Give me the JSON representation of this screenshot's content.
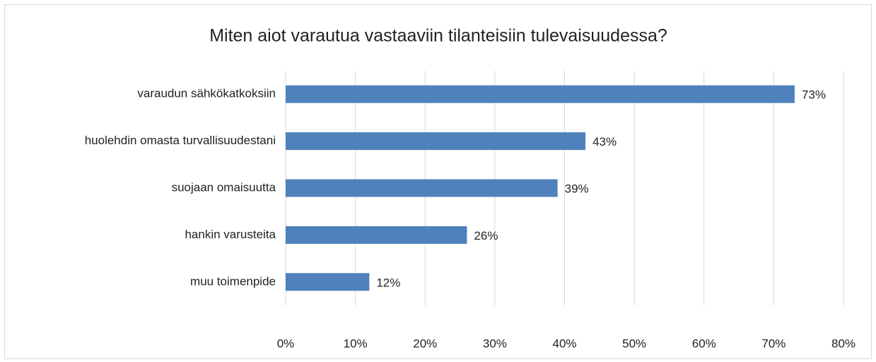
{
  "chart_data": {
    "type": "bar",
    "orientation": "horizontal",
    "title": "Miten aiot varautua vastaaviin tilanteisiin tulevaisuudessa?",
    "categories": [
      "varaudun sähkökatkoksiin",
      "huolehdin omasta turvallisuudestani",
      "suojaan omaisuutta",
      "hankin varusteita",
      "muu toimenpide"
    ],
    "values": [
      73,
      43,
      39,
      26,
      12
    ],
    "value_labels": [
      "73%",
      "43%",
      "39%",
      "26%",
      "12%"
    ],
    "color": "#4f81bd",
    "xlim": [
      0,
      80
    ],
    "xticks": [
      {
        "value": 0,
        "label": "0%"
      },
      {
        "value": 10,
        "label": "10%"
      },
      {
        "value": 20,
        "label": "20%"
      },
      {
        "value": 30,
        "label": "30%"
      },
      {
        "value": 40,
        "label": "40%"
      },
      {
        "value": 50,
        "label": "50%"
      },
      {
        "value": 60,
        "label": "60%"
      },
      {
        "value": 70,
        "label": "70%"
      },
      {
        "value": 80,
        "label": "80%"
      }
    ],
    "grid": true
  }
}
